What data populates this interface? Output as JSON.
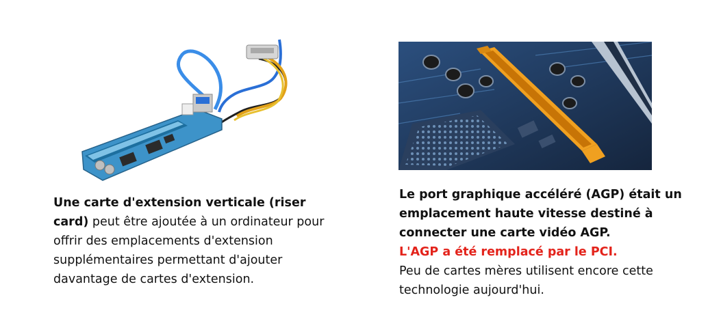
{
  "left": {
    "image": {
      "subject": "riser card"
    },
    "caption_bold": "Une carte d'extension verticale (riser card)",
    "caption_rest": " peut être ajoutée à un ordinateur pour offrir des emplacements d'extension supplémentaires permettant d'ajouter davantage de cartes d'extension."
  },
  "right": {
    "image": {
      "subject": "AGP slot on motherboard"
    },
    "caption_bold": "Le port graphique accéléré (AGP) était un emplacement haute vitesse destiné à connecter une carte vidéo AGP.",
    "caption_red": "L'AGP a été remplacé par le PCI.",
    "caption_rest": "Peu de cartes mères utilisent encore cette technologie aujourd'hui."
  },
  "colors": {
    "accent_red": "#e3231b",
    "agp_slot": "#f0a020",
    "pcb_blue": "#2f6fa8"
  }
}
